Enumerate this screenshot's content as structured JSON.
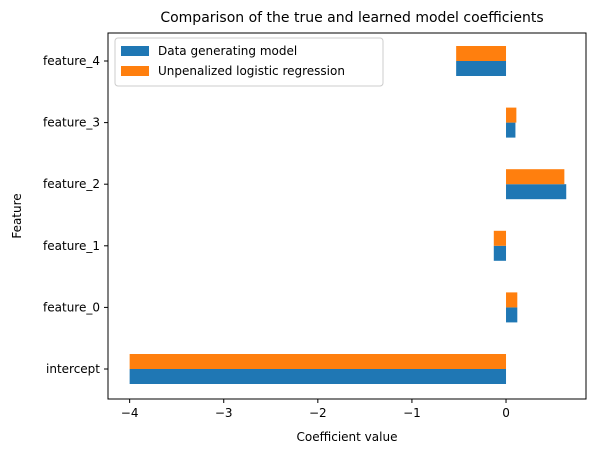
{
  "chart_data": {
    "type": "bar",
    "orientation": "horizontal",
    "title": "Comparison of the true and learned model coefficients",
    "xlabel": "Coefficient value",
    "ylabel": "Feature",
    "categories": [
      "intercept",
      "feature_0",
      "feature_1",
      "feature_2",
      "feature_3",
      "feature_4"
    ],
    "series": [
      {
        "name": "Data generating model",
        "color": "#1f77b4",
        "values": [
          -4.0,
          0.12,
          -0.13,
          0.64,
          0.1,
          -0.53
        ]
      },
      {
        "name": "Unpenalized logistic regression",
        "color": "#ff7f0e",
        "values": [
          -4.0,
          0.12,
          -0.13,
          0.62,
          0.11,
          -0.53
        ]
      }
    ],
    "xlim": [
      -4.23,
      0.85
    ],
    "xticks": [
      -4,
      -3,
      -2,
      -1,
      0
    ],
    "xtick_labels": [
      "−4",
      "−3",
      "−2",
      "−1",
      "0"
    ],
    "legend_position": "upper-left",
    "grid": false
  }
}
